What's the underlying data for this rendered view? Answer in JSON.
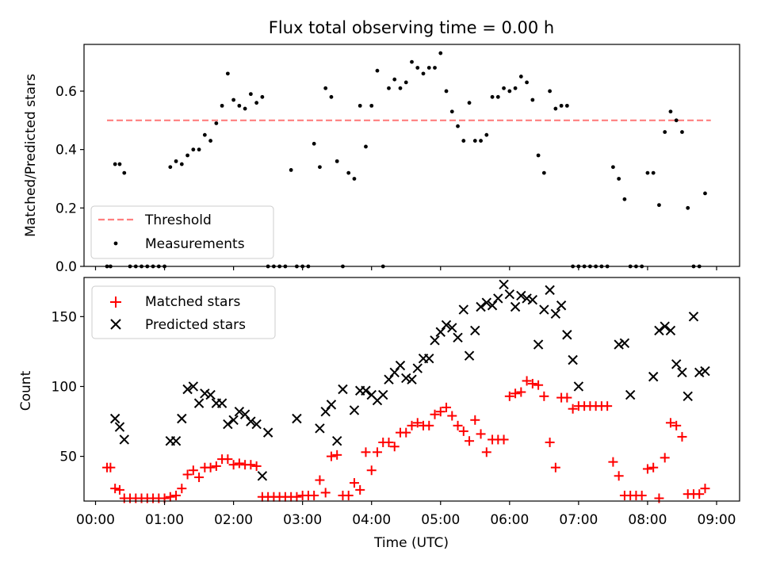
{
  "figure": {
    "title": "Flux total observing time = 0.00 h"
  },
  "chart_data": [
    {
      "type": "scatter",
      "panel": "top",
      "ylabel": "Matched/Predicted stars",
      "xlabel": "",
      "xlim": [
        "-00:10",
        "09:20"
      ],
      "ylim": [
        0,
        0.76
      ],
      "yticks": [
        0.0,
        0.2,
        0.4,
        0.6
      ],
      "ytick_labels": [
        "0.0",
        "0.2",
        "0.4",
        "0.6"
      ],
      "grid": false,
      "legend_position": "lower-left",
      "series": [
        {
          "name": "Threshold",
          "kind": "dashed-line",
          "color": "#ff7f7f",
          "x": [
            "00:10",
            "08:55"
          ],
          "y": [
            0.5,
            0.5
          ]
        },
        {
          "name": "Measurements",
          "kind": "dot",
          "color": "#000000",
          "x": [
            "00:10",
            "00:13",
            "00:17",
            "00:21",
            "00:25",
            "00:30",
            "00:35",
            "00:40",
            "00:45",
            "00:50",
            "00:55",
            "01:00",
            "01:05",
            "01:10",
            "01:15",
            "01:20",
            "01:25",
            "01:30",
            "01:35",
            "01:40",
            "01:45",
            "01:50",
            "01:55",
            "02:00",
            "02:05",
            "02:10",
            "02:15",
            "02:20",
            "02:25",
            "02:30",
            "02:35",
            "02:40",
            "02:45",
            "02:50",
            "02:55",
            "03:00",
            "03:05",
            "03:10",
            "03:15",
            "03:20",
            "03:25",
            "03:30",
            "03:35",
            "03:40",
            "03:45",
            "03:50",
            "03:55",
            "04:00",
            "04:05",
            "04:10",
            "04:15",
            "04:20",
            "04:25",
            "04:30",
            "04:35",
            "04:40",
            "04:45",
            "04:50",
            "04:55",
            "05:00",
            "05:05",
            "05:10",
            "05:15",
            "05:20",
            "05:25",
            "05:30",
            "05:35",
            "05:40",
            "05:45",
            "05:50",
            "05:55",
            "06:00",
            "06:05",
            "06:10",
            "06:15",
            "06:20",
            "06:25",
            "06:30",
            "06:35",
            "06:40",
            "06:45",
            "06:50",
            "06:55",
            "07:00",
            "07:05",
            "07:10",
            "07:15",
            "07:20",
            "07:25",
            "07:30",
            "07:35",
            "07:40",
            "07:45",
            "07:50",
            "07:55",
            "08:00",
            "08:05",
            "08:10",
            "08:15",
            "08:20",
            "08:25",
            "08:30",
            "08:35",
            "08:40",
            "08:45",
            "08:50"
          ],
          "y": [
            0.0,
            0.0,
            0.35,
            0.35,
            0.32,
            0.0,
            0.0,
            0.0,
            0.0,
            0.0,
            0.0,
            0.0,
            0.34,
            0.36,
            0.35,
            0.38,
            0.4,
            0.4,
            0.45,
            0.43,
            0.49,
            0.55,
            0.66,
            0.57,
            0.55,
            0.54,
            0.59,
            0.56,
            0.58,
            0.0,
            0.0,
            0.0,
            0.0,
            0.33,
            0.0,
            0.0,
            0.0,
            0.42,
            0.34,
            0.61,
            0.58,
            0.36,
            0.0,
            0.32,
            0.3,
            0.55,
            0.41,
            0.55,
            0.67,
            0.0,
            0.61,
            0.64,
            0.61,
            0.63,
            0.7,
            0.68,
            0.66,
            0.68,
            0.68,
            0.73,
            0.6,
            0.53,
            0.48,
            0.43,
            0.56,
            0.43,
            0.43,
            0.45,
            0.58,
            0.58,
            0.61,
            0.6,
            0.61,
            0.65,
            0.63,
            0.57,
            0.38,
            0.32,
            0.6,
            0.54,
            0.55,
            0.55,
            0.0,
            0.0,
            0.0,
            0.0,
            0.0,
            0.0,
            0.0,
            0.34,
            0.3,
            0.23,
            0.0,
            0.0,
            0.0,
            0.32,
            0.32,
            0.21,
            0.46,
            0.53,
            0.5,
            0.46,
            0.2,
            0.0,
            0.0,
            0.25
          ]
        }
      ]
    },
    {
      "type": "scatter",
      "panel": "bottom",
      "ylabel": "Count",
      "xlabel": "Time (UTC)",
      "xlim": [
        "-00:10",
        "09:20"
      ],
      "ylim": [
        18,
        178
      ],
      "xticks": [
        "00:00",
        "01:00",
        "02:00",
        "03:00",
        "04:00",
        "05:00",
        "06:00",
        "07:00",
        "08:00",
        "09:00"
      ],
      "yticks": [
        50,
        100,
        150
      ],
      "ytick_labels": [
        "50",
        "100",
        "150"
      ],
      "grid": false,
      "legend_position": "upper-left",
      "series": [
        {
          "name": "Matched stars",
          "marker": "plus",
          "color": "#ff0000",
          "x": [
            "00:10",
            "00:13",
            "00:17",
            "00:21",
            "00:25",
            "00:30",
            "00:35",
            "00:40",
            "00:45",
            "00:50",
            "00:55",
            "01:00",
            "01:05",
            "01:10",
            "01:15",
            "01:20",
            "01:25",
            "01:30",
            "01:35",
            "01:40",
            "01:45",
            "01:50",
            "01:55",
            "02:00",
            "02:05",
            "02:10",
            "02:15",
            "02:20",
            "02:25",
            "02:30",
            "02:35",
            "02:40",
            "02:45",
            "02:50",
            "02:55",
            "03:00",
            "03:05",
            "03:10",
            "03:15",
            "03:20",
            "03:25",
            "03:30",
            "03:35",
            "03:40",
            "03:45",
            "03:50",
            "03:55",
            "04:00",
            "04:05",
            "04:10",
            "04:15",
            "04:20",
            "04:25",
            "04:30",
            "04:35",
            "04:40",
            "04:45",
            "04:50",
            "04:55",
            "05:00",
            "05:05",
            "05:10",
            "05:15",
            "05:20",
            "05:25",
            "05:30",
            "05:35",
            "05:40",
            "05:45",
            "05:50",
            "05:55",
            "06:00",
            "06:05",
            "06:10",
            "06:15",
            "06:20",
            "06:25",
            "06:30",
            "06:35",
            "06:40",
            "06:45",
            "06:50",
            "06:55",
            "07:00",
            "07:05",
            "07:10",
            "07:15",
            "07:20",
            "07:25",
            "07:30",
            "07:35",
            "07:40",
            "07:45",
            "07:50",
            "07:55",
            "08:00",
            "08:05",
            "08:10",
            "08:15",
            "08:20",
            "08:25",
            "08:30",
            "08:35",
            "08:40",
            "08:45",
            "08:50"
          ],
          "y": [
            42,
            42,
            27,
            26,
            20,
            20,
            20,
            20,
            20,
            20,
            20,
            20,
            21,
            22,
            27,
            37,
            40,
            35,
            42,
            42,
            43,
            48,
            48,
            44,
            45,
            44,
            44,
            43,
            21,
            21,
            21,
            21,
            21,
            21,
            21,
            22,
            22,
            22,
            33,
            24,
            50,
            51,
            22,
            22,
            31,
            26,
            53,
            40,
            53,
            60,
            60,
            57,
            67,
            67,
            72,
            74,
            72,
            72,
            80,
            82,
            85,
            79,
            72,
            68,
            61,
            76,
            66,
            53,
            62,
            62,
            62,
            93,
            95,
            96,
            104,
            102,
            101,
            93,
            60,
            42,
            92,
            92,
            84,
            86,
            86,
            86,
            86,
            86,
            86,
            46,
            36,
            22,
            22,
            22,
            22,
            41,
            42,
            20,
            49,
            74,
            72,
            64,
            23,
            23,
            23,
            27
          ]
        },
        {
          "name": "Predicted stars",
          "marker": "x",
          "color": "#000000",
          "x": [
            "00:17",
            "00:21",
            "00:25",
            "01:05",
            "01:10",
            "01:15",
            "01:20",
            "01:25",
            "01:30",
            "01:35",
            "01:40",
            "01:45",
            "01:50",
            "01:55",
            "02:00",
            "02:05",
            "02:10",
            "02:15",
            "02:20",
            "02:25",
            "02:30",
            "02:55",
            "03:15",
            "03:20",
            "03:25",
            "03:30",
            "03:35",
            "03:45",
            "03:50",
            "03:55",
            "04:00",
            "04:05",
            "04:10",
            "04:15",
            "04:20",
            "04:25",
            "04:30",
            "04:35",
            "04:40",
            "04:45",
            "04:50",
            "04:55",
            "05:00",
            "05:05",
            "05:10",
            "05:15",
            "05:20",
            "05:25",
            "05:30",
            "05:35",
            "05:40",
            "05:45",
            "05:50",
            "05:55",
            "06:00",
            "06:05",
            "06:10",
            "06:15",
            "06:20",
            "06:25",
            "06:30",
            "06:35",
            "06:40",
            "06:45",
            "06:50",
            "06:55",
            "07:00",
            "07:35",
            "07:40",
            "07:45",
            "08:05",
            "08:10",
            "08:15",
            "08:20",
            "08:25",
            "08:30",
            "08:35",
            "08:40",
            "08:45",
            "08:50"
          ],
          "y": [
            77,
            71,
            62,
            61,
            61,
            77,
            98,
            100,
            88,
            95,
            94,
            88,
            88,
            73,
            76,
            82,
            80,
            75,
            73,
            36,
            67,
            77,
            70,
            82,
            87,
            61,
            98,
            83,
            97,
            97,
            94,
            90,
            94,
            105,
            110,
            115,
            106,
            105,
            113,
            120,
            120,
            133,
            139,
            144,
            142,
            135,
            155,
            122,
            140,
            157,
            160,
            158,
            163,
            173,
            166,
            157,
            165,
            163,
            162,
            130,
            155,
            169,
            152,
            158,
            137,
            119,
            100,
            130,
            131,
            94,
            107,
            140,
            143,
            140,
            116,
            110,
            93,
            150,
            110,
            111
          ]
        }
      ]
    }
  ]
}
